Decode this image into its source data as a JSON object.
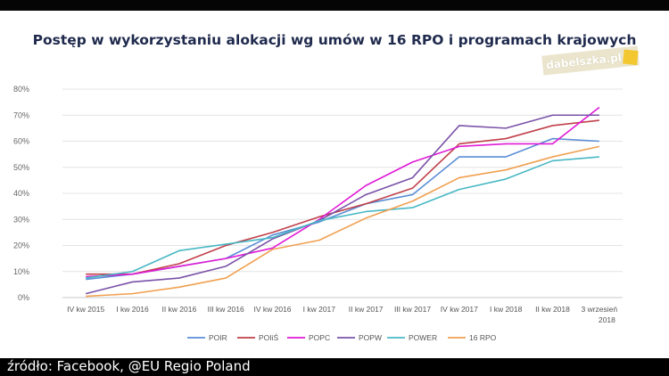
{
  "caption": "źródło: Facebook, @EU Regio Poland",
  "watermark": "dabelszka.pl",
  "chart_data": {
    "type": "line",
    "title": "Postęp w wykorzystaniu alokacji wg umów w 16 RPO i programach krajowych",
    "categories": [
      "IV kw 2015",
      "I kw 2016",
      "II kw 2016",
      "III kw 2016",
      "IV kw 2016",
      "I kw 2017",
      "II kw 2017",
      "III kw 2017",
      "IV kw 2017",
      "I kw 2018",
      "II kw 2018",
      "3 wrzesień 2018"
    ],
    "ylim": [
      0,
      80
    ],
    "yticks": [
      0,
      10,
      20,
      30,
      40,
      50,
      60,
      70,
      80
    ],
    "ytick_labels": [
      "0%",
      "10%",
      "20%",
      "30%",
      "40%",
      "50%",
      "60%",
      "70%",
      "80%"
    ],
    "grid": true,
    "legend_position": "bottom",
    "series": [
      {
        "name": "POIR",
        "color": "#5b8ed6",
        "values": [
          7,
          9,
          12,
          15,
          24,
          29,
          36,
          39.5,
          54,
          54,
          61,
          60
        ]
      },
      {
        "name": "POIiŚ",
        "color": "#c0404a",
        "values": [
          9,
          9,
          13,
          20,
          25,
          31,
          36,
          42,
          59,
          61,
          66,
          68
        ]
      },
      {
        "name": "POPC",
        "color": "#e01ad6",
        "values": [
          8,
          9,
          12,
          15,
          19,
          30,
          43,
          52,
          58,
          59,
          59,
          73
        ]
      },
      {
        "name": "POPW",
        "color": "#7a52a8",
        "values": [
          1.5,
          6,
          7.5,
          12,
          22.5,
          29.5,
          39.5,
          46,
          66,
          65,
          70,
          70
        ]
      },
      {
        "name": "POWER",
        "color": "#48b8c4",
        "values": [
          7.5,
          10,
          18,
          20.5,
          23,
          29.5,
          33,
          34.5,
          41.5,
          45.5,
          52.5,
          54
        ]
      },
      {
        "name": "16 RPO",
        "color": "#f0a050",
        "values": [
          0.5,
          1.5,
          4,
          7.5,
          18.5,
          22,
          30.5,
          37,
          46,
          49,
          54,
          58
        ]
      }
    ]
  }
}
